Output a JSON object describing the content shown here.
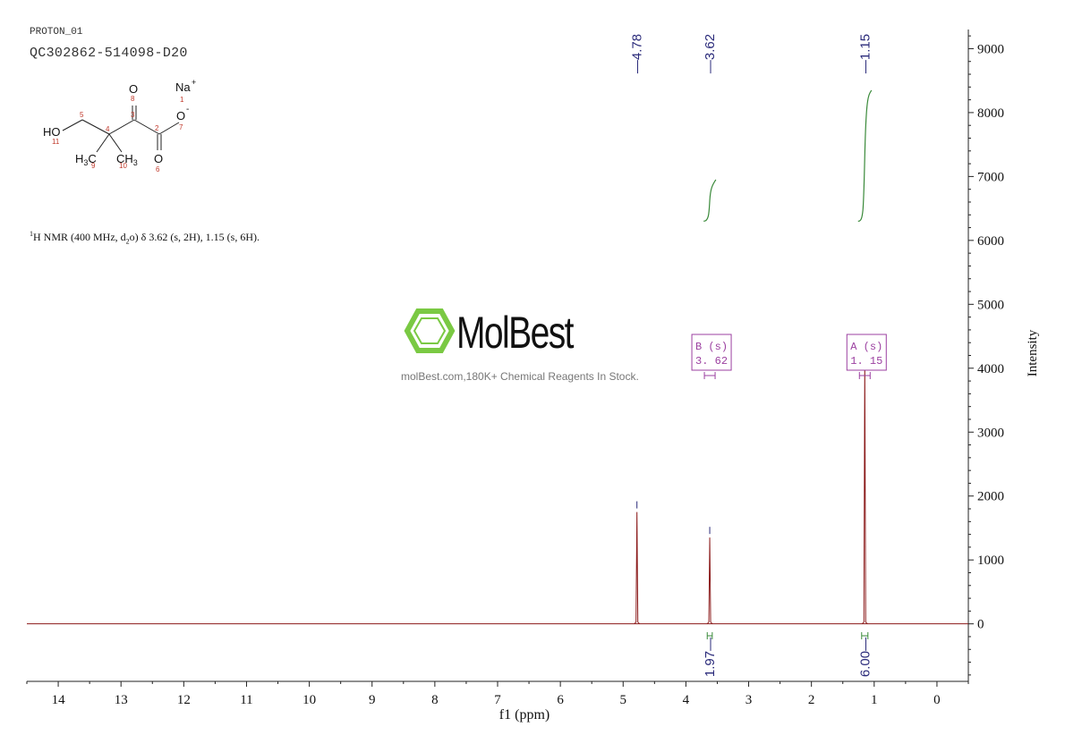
{
  "header": {
    "experiment": "PROTON_01",
    "sample_id": "QC302862-514098-D20"
  },
  "nmr_description": {
    "nucleus_sup": "1",
    "prefix": "H NMR (400 MHz, d",
    "sub": "2",
    "suffix": "o) δ 3.62 (s, 2H), 1.15 (s, 6H)."
  },
  "structure": {
    "labels": {
      "ho": "HO",
      "o_carbonyl": "O",
      "o_acid": "O",
      "o_minus": "O",
      "na": "Na",
      "na_charge": "+",
      "o_charge": "-",
      "ch3_a": "H",
      "ch3_a_sub": "3",
      "ch3_a_c": "C",
      "ch3_b": "CH",
      "ch3_b_sub": "3"
    },
    "atom_numbers": [
      "1",
      "2",
      "3",
      "4",
      "5",
      "6",
      "7",
      "8",
      "9",
      "10",
      "11"
    ]
  },
  "watermark": {
    "brand": "MolBest",
    "tagline": "molBest.com,180K+ Chemical Reagents In Stock."
  },
  "colors": {
    "spectrum": "#8b1a1a",
    "peak_label": "#2a2a7a",
    "integral": "#3a8a3a",
    "multiplet": "#9b3fa0",
    "watermark_green": "#7ac943"
  },
  "chart_data": {
    "type": "line",
    "xlabel": "f1 (ppm)",
    "ylabel": "Intensity",
    "xlim": [
      14.5,
      -0.5
    ],
    "ylim": [
      -900,
      9300
    ],
    "x_ticks": [
      14,
      13,
      12,
      11,
      10,
      9,
      8,
      7,
      6,
      5,
      4,
      3,
      2,
      1,
      0
    ],
    "y_ticks": [
      0,
      1000,
      2000,
      3000,
      4000,
      5000,
      6000,
      7000,
      8000,
      9000
    ],
    "peaks": [
      {
        "ppm": 4.78,
        "height": 1750,
        "label": "4.78"
      },
      {
        "ppm": 3.62,
        "height": 1350,
        "label": "3.62"
      },
      {
        "ppm": 1.15,
        "height": 4150,
        "label": "1.15"
      }
    ],
    "integrals": [
      {
        "from": 3.66,
        "to": 3.58,
        "value": "1.97",
        "y_start": 6300,
        "y_end": 6950
      },
      {
        "from": 1.2,
        "to": 1.1,
        "value": "6.00",
        "y_start": 6300,
        "y_end": 8350
      }
    ],
    "multiplets": [
      {
        "id": "B",
        "type": "(s)",
        "shift": "3. 62",
        "ppm": 3.62
      },
      {
        "id": "A",
        "type": "(s)",
        "shift": "1. 15",
        "ppm": 1.15
      }
    ]
  }
}
